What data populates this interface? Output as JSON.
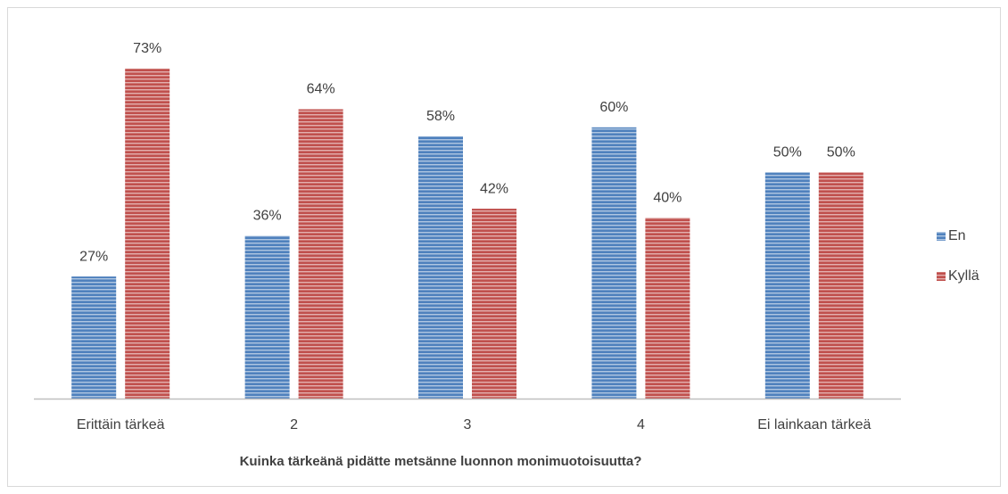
{
  "chart_data": {
    "type": "bar",
    "x_label": "Kuinka tärkeänä pidätte metsänne luonnon monimuotoisuutta?",
    "categories": [
      "Erittäin tärkeä",
      "2",
      "3",
      "4",
      "Ei lainkaan tärkeä"
    ],
    "series": [
      {
        "name": "En",
        "color": "#4f81bd",
        "values": [
          27,
          36,
          58,
          60,
          50
        ],
        "value_labels": [
          "27%",
          "36%",
          "58%",
          "60%",
          "50%"
        ]
      },
      {
        "name": "Kyllä",
        "color": "#c0504d",
        "values": [
          73,
          64,
          42,
          40,
          50
        ],
        "value_labels": [
          "73%",
          "64%",
          "42%",
          "40%",
          "50%"
        ]
      }
    ],
    "legend": "right"
  }
}
